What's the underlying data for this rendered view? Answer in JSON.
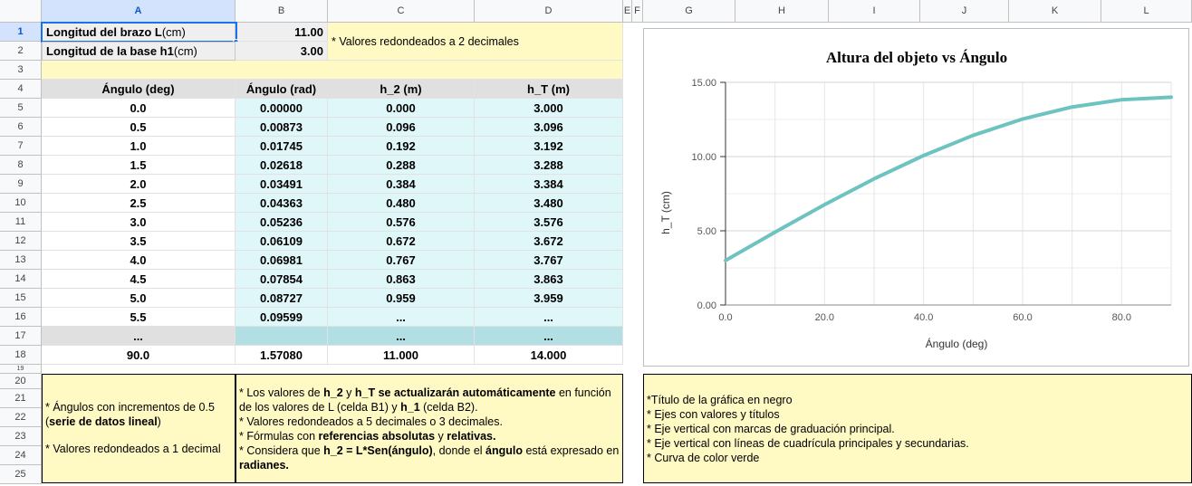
{
  "columns": [
    "A",
    "B",
    "C",
    "D",
    "E",
    "F",
    "G",
    "H",
    "I",
    "J",
    "K",
    "L"
  ],
  "rows": [
    "1",
    "2",
    "3",
    "4",
    "5",
    "6",
    "7",
    "8",
    "9",
    "10",
    "11",
    "12",
    "13",
    "14",
    "15",
    "16",
    "17",
    "18",
    "19",
    "20",
    "21",
    "22",
    "23",
    "24",
    "25"
  ],
  "params": {
    "arm_label_bold": "Longitud del brazo L",
    "arm_label_unit": " (cm)",
    "arm_value": "11.00",
    "base_label_bold": "Longitud de la base h1",
    "base_label_unit": " (cm)",
    "base_value": "3.00",
    "rounding_note": "* Valores redondeados a 2 decimales"
  },
  "table": {
    "headers": [
      "Ángulo (deg)",
      "Ángulo (rad)",
      "h_2 (m)",
      "h_T (m)"
    ],
    "rows": [
      [
        "0.0",
        "0.00000",
        "0.000",
        "3.000"
      ],
      [
        "0.5",
        "0.00873",
        "0.096",
        "3.096"
      ],
      [
        "1.0",
        "0.01745",
        "0.192",
        "3.192"
      ],
      [
        "1.5",
        "0.02618",
        "0.288",
        "3.288"
      ],
      [
        "2.0",
        "0.03491",
        "0.384",
        "3.384"
      ],
      [
        "2.5",
        "0.04363",
        "0.480",
        "3.480"
      ],
      [
        "3.0",
        "0.05236",
        "0.576",
        "3.576"
      ],
      [
        "3.5",
        "0.06109",
        "0.672",
        "3.672"
      ],
      [
        "4.0",
        "0.06981",
        "0.767",
        "3.767"
      ],
      [
        "4.5",
        "0.07854",
        "0.863",
        "3.863"
      ],
      [
        "5.0",
        "0.08727",
        "0.959",
        "3.959"
      ],
      [
        "5.5",
        "0.09599",
        "...",
        "..."
      ]
    ],
    "ellipsis_row": [
      "...",
      "",
      "...",
      "..."
    ],
    "last_row": [
      "90.0",
      "1.57080",
      "11.000",
      "14.000"
    ]
  },
  "notes": {
    "left": {
      "l1": "* Ángulos con incrementos de 0.5",
      "l2_bold": "serie de datos lineal",
      "l3": "* Valores redondeados a 1 decimal"
    },
    "middle": {
      "a1": "* Los valores de ",
      "a2": "h_2",
      "a3": " y ",
      "a4": "h_T",
      "a5": " se actualizarán automáticamente",
      "a6": " en función de los valores de L (celda B1) y ",
      "a7": "h_1",
      "a8": " (celda B2).",
      "b": "* Valores redondeados a 5 decimales o 3 decimales.",
      "c1": "* Fórmulas con ",
      "c2": "referencias absolutas",
      "c3": " y ",
      "c4": "relativas.",
      "d1": "* Considera que ",
      "d2": "h_2 = L*Sen(ángulo)",
      "d3": ", donde el ",
      "d4": "ángulo",
      "d5": " está expresado en ",
      "d6": "radianes."
    },
    "right": [
      "*Título de la gráfica en negro",
      "* Ejes con valores y títulos",
      "* Eje vertical con marcas de graduación principal.",
      "* Eje vertical con líneas de cuadrícula principales y secundarias.",
      "* Curva de color verde"
    ]
  },
  "chart_data": {
    "type": "line",
    "title": "Altura del objeto vs Ángulo",
    "xlabel": "Ángulo (deg)",
    "ylabel": "h_T (cm)",
    "xlim": [
      0,
      90
    ],
    "ylim": [
      0,
      15
    ],
    "xticks": [
      "0.0",
      "20.0",
      "40.0",
      "60.0",
      "80.0"
    ],
    "yticks": [
      "0.00",
      "5.00",
      "10.00",
      "15.00"
    ],
    "grid": true,
    "series": [
      {
        "x": [
          0,
          10,
          20,
          30,
          40,
          50,
          60,
          70,
          80,
          90
        ],
        "values": [
          3.0,
          4.91,
          6.76,
          8.5,
          10.07,
          11.43,
          12.53,
          13.34,
          13.83,
          14.0
        ]
      }
    ],
    "line_color": "#6cc3c0"
  }
}
